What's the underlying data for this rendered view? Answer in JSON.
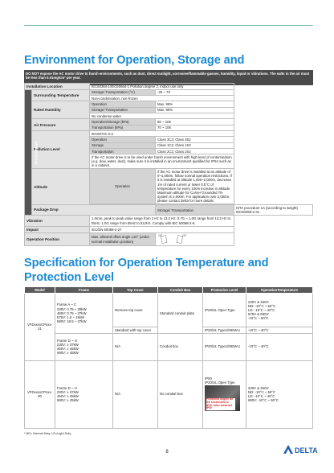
{
  "section1": {
    "title": "Environment for Operation, Storage and Transportation",
    "notice": "DO NOT expose the AC motor drive to harsh environments, such as dust, direct sunlight, corrosive/flammable gasses, humidity, liquid or vibrations. The salts in the air must be less than 0.01mg/cm² per year.",
    "group_label": "Environment",
    "installation": {
      "label": "Installation Location",
      "value": "IEC60364-1/IEC60664-1 Pollution degree 2, indoor use only"
    },
    "temperature": {
      "label": "Surrounding Temperature",
      "condition": "Storage/ Transportation (°C)",
      "value": "-25 ~ 70",
      "note": "Non-condensation, non-frozen"
    },
    "humidity": {
      "label": "Rated Humidity",
      "rows": [
        [
          "Operation",
          "Max. 95%"
        ],
        [
          "Storage/ Transportation",
          "Max. 95%"
        ]
      ],
      "note": "No condense water"
    },
    "air_pressure": {
      "label": "Air Pressure",
      "rows": [
        [
          "Operation/Storage (kPa)",
          "86 ~ 106"
        ],
        [
          "Transportation (kPa)",
          "70 ~ 106"
        ]
      ]
    },
    "pollution": {
      "label": "Pollution Level",
      "standard": "IEC60721-3-3",
      "rows": [
        [
          "Operation",
          "Class 3C3; Class 3S2"
        ],
        [
          "Storage",
          "Class 1C2; Class 1S2"
        ],
        [
          "Transportation",
          "Class 2C2; Class 2S2"
        ]
      ],
      "note": "If the AC motor drive is to be used under harsh environment with high level of contamination (e.g. dew, water, dust), make sure it is installed in an environment qualified for IP54 such as in a cabinet."
    },
    "altitude": {
      "label": "Altitude",
      "condition": "Operation",
      "value": "If the AC motor drive is installed at an altitude of 0~1,000m, follow normal operation restrictions. If it is installed at altitude 1,000~2,000m, decrease 1% of rated current or lower 0.5°C of temperature for every 100m increase in altitude. Maximum altitude for Corner Grounded TN system is 2,000m. For application over 2,000m, please contact Delta for more details."
    },
    "package_drop": {
      "label": "Package Drop",
      "condition": "Storage/ Transportation",
      "value": "ISTA procedure 1A (according to weight) IEC60068-2-31"
    },
    "vibration": {
      "label": "Vibration",
      "value": "1.0mm, peak to peak value range from 2 Hz to 13.2 Hz; 0.7G ~ 1.0G range from 13.2 Hz to 55Hz; 1.0G range from 55Hz to 512Hz. Comply with IEC 60068-2-6."
    },
    "impact": {
      "label": "Impact",
      "value": "IEC/EN 60068-2-27"
    },
    "operation_position": {
      "label": "Operation Position",
      "value": "Max. allowed offset angle ±10° (under normal installation position)",
      "angle": "10°"
    }
  },
  "section2": {
    "title": "Specification for Operation Temperature and Protection Level",
    "columns": [
      "Model",
      "Frame",
      "Top Cover",
      "Conduit Box",
      "Protection Level",
      "OperationTemperature"
    ],
    "model_21": "VFDxxxxCPxxx-21",
    "frame_ac": [
      "Frame A ~ C",
      "230V: 0.75 ~ 30kW",
      "460V: 0.75 ~ 37kW",
      "575V: 1.5 ~ 15kW",
      "690V: 18.5 ~ 37kW"
    ],
    "top_remove": "Remove top cover",
    "conduit_plate": "Standard conduit plate",
    "prot_open": "IP20/UL Open Type",
    "temp_ac": [
      "230V & 460V:",
      "ND: -10°C ~ 50°C",
      "LD: -10°C ~ 40°C",
      "575V & 690V:",
      "-10°C ~ 50°C"
    ],
    "top_standard": "Standard with top cover",
    "prot_type1": "IP20/UL Type1/NEMA1",
    "temp_40": "-10°C ~ 40°C",
    "frame_dh": [
      "Frame D ~ H",
      "230V: ≥ 37kW",
      "460V: ≥ 45kW",
      "690V: ≥ 45kW"
    ],
    "na": "N/A",
    "conduit_box": "Conduit box",
    "model_00": "VFDxxxxCPxxx-00",
    "no_conduit": "No conduit box",
    "prot_00": [
      "IP00",
      "IP20/UL Open Type"
    ],
    "image_caption": "Protection degree for the circled area is IP20, other areas are IP00",
    "temp_00": [
      "230V & 460V:",
      "ND: -10°C ~ 50°C",
      "LD: -10°C ~ 40°C",
      "690V: -10°C ~ 50°C"
    ]
  },
  "footer": {
    "footnote": "* ND= Normal Duty, LD=Light Duty",
    "page_number": "8",
    "logo": "DELTA"
  }
}
